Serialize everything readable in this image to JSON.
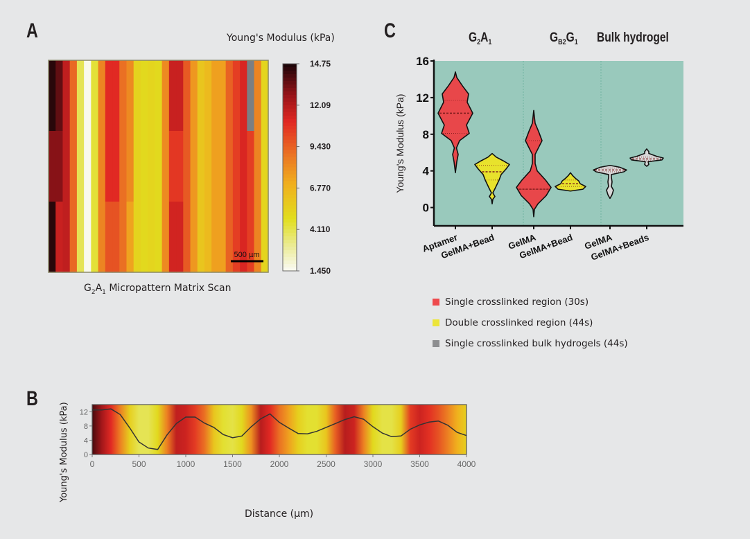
{
  "panels": {
    "a_label": "A",
    "b_label": "B",
    "c_label": "C"
  },
  "chart_data": [
    {
      "id": "A",
      "type": "heatmap",
      "title": "G₂A₁ Micropattern Matrix Scan",
      "title_parts": {
        "g": "G",
        "g_sub": "2",
        "a": "A",
        "a_sub": "1",
        "rest": " Micropattern Matrix Scan"
      },
      "colorbar_title": "Young's Modulus (kPa)",
      "colorbar_ticks": [
        "14.75",
        "12.09",
        "9.430",
        "6.770",
        "4.110",
        "1.450"
      ],
      "colorbar_range": [
        1.45,
        14.75
      ],
      "scale_bar_label": "500 µm",
      "rows": 3,
      "columns": 31,
      "values": [
        [
          14.5,
          13.6,
          11.8,
          9.2,
          4.0,
          1.6,
          4.4,
          8.4,
          11.0,
          11.0,
          9.0,
          8.2,
          5.3,
          5.0,
          5.2,
          5.0,
          8.2,
          11.6,
          11.6,
          9.6,
          7.8,
          6.0,
          6.5,
          7.5,
          7.5,
          9.4,
          10.4,
          11.2,
          null,
          8.4,
          5.2
        ],
        [
          13.0,
          13.0,
          11.8,
          9.2,
          4.0,
          1.6,
          4.4,
          8.4,
          11.0,
          11.0,
          9.0,
          8.2,
          5.3,
          5.0,
          5.2,
          5.0,
          8.2,
          10.6,
          10.6,
          9.6,
          7.8,
          6.0,
          6.5,
          7.5,
          7.5,
          9.4,
          10.4,
          11.2,
          10.4,
          8.4,
          5.2
        ],
        [
          14.5,
          11.6,
          11.8,
          9.2,
          4.0,
          1.6,
          4.4,
          8.4,
          9.8,
          9.8,
          9.0,
          7.4,
          5.3,
          5.0,
          5.2,
          5.0,
          8.2,
          11.4,
          11.4,
          9.6,
          7.8,
          6.0,
          6.5,
          7.5,
          7.5,
          9.4,
          10.4,
          11.2,
          10.4,
          8.4,
          5.2
        ]
      ]
    },
    {
      "id": "B",
      "type": "line",
      "xlabel": "Distance (µm)",
      "ylabel": "Young's Modulus (kPa)",
      "xlim": [
        0,
        4000
      ],
      "ylim": [
        0,
        14
      ],
      "xticks": [
        "0",
        "500",
        "1000",
        "1500",
        "2000",
        "2500",
        "3000",
        "3500",
        "4000"
      ],
      "yticks": [
        "0",
        "4",
        "8",
        "12"
      ],
      "x": [
        0,
        100,
        200,
        300,
        400,
        500,
        600,
        700,
        800,
        900,
        1000,
        1100,
        1200,
        1300,
        1400,
        1500,
        1600,
        1700,
        1800,
        1900,
        2000,
        2100,
        2200,
        2300,
        2400,
        2500,
        2600,
        2700,
        2800,
        2900,
        3000,
        3100,
        3200,
        3300,
        3400,
        3500,
        3600,
        3700,
        3800,
        3900,
        4000
      ],
      "y": [
        12.5,
        12.5,
        12.8,
        11.2,
        7.5,
        3.5,
        1.8,
        1.4,
        5.5,
        8.7,
        10.5,
        10.5,
        8.8,
        7.6,
        5.6,
        4.7,
        5.2,
        7.8,
        10.0,
        11.4,
        9.0,
        7.4,
        5.9,
        5.8,
        6.5,
        7.6,
        8.7,
        9.8,
        10.6,
        9.9,
        7.8,
        6.0,
        5.0,
        5.2,
        7.1,
        8.3,
        9.1,
        9.4,
        8.2,
        6.2,
        5.3
      ],
      "background_gradient_values": [
        14.0,
        12.5,
        11.0,
        8.5,
        5.5,
        4.0,
        4.0,
        5.0,
        8.5,
        11.8,
        11.5,
        10.5,
        9.0,
        6.0,
        4.5,
        4.2,
        5.0,
        8.0,
        12.0,
        11.0,
        9.0,
        7.5,
        5.5,
        4.5,
        4.5,
        6.0,
        9.5,
        12.0,
        11.5,
        8.5,
        5.0,
        4.2,
        4.2,
        5.5,
        10.5,
        11.5,
        10.8,
        9.8,
        8.5,
        7.0,
        5.5
      ],
      "line_color": "#333333"
    },
    {
      "id": "C",
      "type": "violin",
      "ylabel": "Young's Modulus (kPa)",
      "ylim": [
        -2,
        16
      ],
      "yticks": [
        "0",
        "4",
        "8",
        "12",
        "16"
      ],
      "groups": [
        {
          "title": "G₂A₁",
          "title_parts": {
            "a": "G",
            "a_sub": "2",
            "b": "A",
            "b_sub": "1"
          },
          "categories": [
            "Aptamer",
            "GelMA+Bead"
          ]
        },
        {
          "title": "Gᴮ₂G₁",
          "title_parts": {
            "a": "G",
            "a_sub": "B2",
            "b": "G",
            "b_sub": "1"
          },
          "categories": [
            "GelMA",
            "GelMA+Bead"
          ]
        },
        {
          "title": "Bulk hydrogel",
          "categories": [
            "GelMA",
            "GelMA+Beads"
          ]
        }
      ],
      "categories": [
        "Aptamer",
        "GelMA+Bead",
        "GelMA",
        "GelMA+Bead",
        "GelMA",
        "GelMA+Beads"
      ],
      "series": [
        {
          "name": "Aptamer",
          "color": "#e8474a",
          "min": 3.8,
          "max": 14.8,
          "q1": 8.1,
          "median": 10.3,
          "q3": 11.7
        },
        {
          "name": "GelMA+Bead (G2A1)",
          "color": "#e8e22c",
          "min": 0.4,
          "max": 5.9,
          "q1": 3.0,
          "median": 3.9,
          "q3": 4.6
        },
        {
          "name": "GelMA (GB2G1)",
          "color": "#e8474a",
          "min": -1.0,
          "max": 10.6,
          "q1": 2.0,
          "median": 2.0,
          "q3": 7.3
        },
        {
          "name": "GelMA+Bead (GB2G1)",
          "color": "#e8e22c",
          "min": 1.8,
          "max": 3.8,
          "q1": 2.3,
          "median": 2.6,
          "q3": 3.0
        },
        {
          "name": "GelMA (Bulk)",
          "color": "#d8d8d8",
          "min": 1.0,
          "max": 4.6,
          "q1": 3.9,
          "median": 4.1,
          "q3": 4.3
        },
        {
          "name": "GelMA+Beads (Bulk)",
          "color": "#d8d8d8",
          "min": 4.5,
          "max": 6.4,
          "q1": 5.1,
          "median": 5.3,
          "q3": 5.5
        }
      ],
      "background_color": "#99c9bc",
      "legend": [
        {
          "label": "Single crosslinked region (30s)",
          "color": "#ee4a4d"
        },
        {
          "label": "Double crosslinked region (44s)",
          "color": "#ece53a"
        },
        {
          "label": "Single crosslinked bulk hydrogels (44s)",
          "color": "#8d8e90"
        }
      ]
    }
  ]
}
